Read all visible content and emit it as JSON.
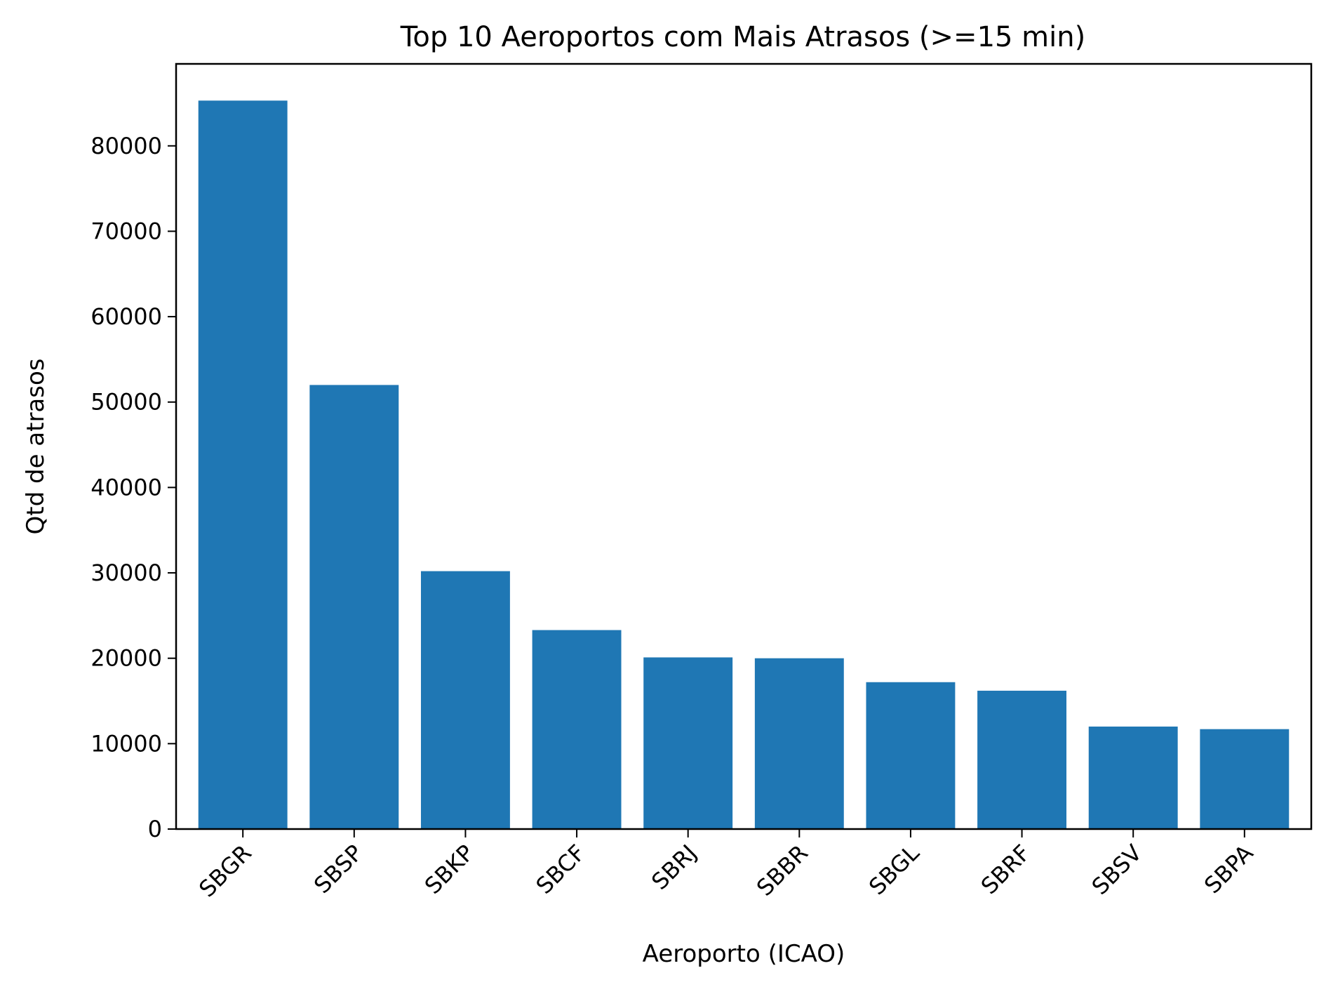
{
  "chart_data": {
    "type": "bar",
    "title": "Top 10 Aeroportos com Mais Atrasos (>=15 min)",
    "xlabel": "Aeroporto (ICAO)",
    "ylabel": "Qtd de atrasos",
    "categories": [
      "SBGR",
      "SBSP",
      "SBKP",
      "SBCF",
      "SBRJ",
      "SBBR",
      "SBGL",
      "SBRF",
      "SBSV",
      "SBPA"
    ],
    "values": [
      85300,
      52000,
      30200,
      23300,
      20100,
      20000,
      17200,
      16200,
      12000,
      11700
    ],
    "ylim": [
      0,
      89600
    ],
    "yticks": [
      0,
      10000,
      20000,
      30000,
      40000,
      50000,
      60000,
      70000,
      80000
    ],
    "grid": false,
    "bar_color": "#1f77b4"
  }
}
